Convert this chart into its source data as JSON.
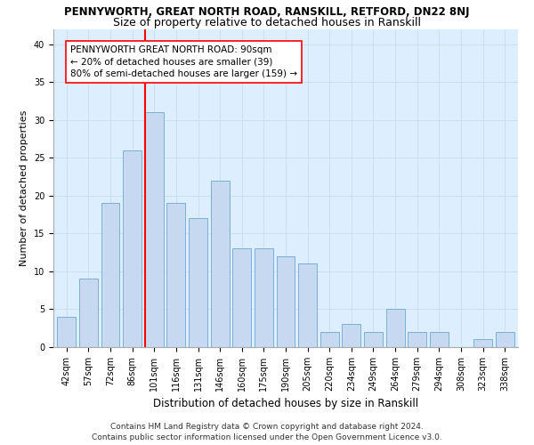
{
  "title1": "PENNYWORTH, GREAT NORTH ROAD, RANSKILL, RETFORD, DN22 8NJ",
  "title2": "Size of property relative to detached houses in Ranskill",
  "xlabel": "Distribution of detached houses by size in Ranskill",
  "ylabel": "Number of detached properties",
  "categories": [
    "42sqm",
    "57sqm",
    "72sqm",
    "86sqm",
    "101sqm",
    "116sqm",
    "131sqm",
    "146sqm",
    "160sqm",
    "175sqm",
    "190sqm",
    "205sqm",
    "220sqm",
    "234sqm",
    "249sqm",
    "264sqm",
    "279sqm",
    "294sqm",
    "308sqm",
    "323sqm",
    "338sqm"
  ],
  "values": [
    4,
    9,
    19,
    26,
    31,
    19,
    17,
    22,
    13,
    13,
    12,
    11,
    2,
    3,
    2,
    5,
    2,
    2,
    0,
    1,
    2
  ],
  "bar_color": "#c6d9f0",
  "bar_edge_color": "#7bafd4",
  "grid_color": "#c8ddf0",
  "bg_color": "#ddeeff",
  "annotation_line1": "PENNYWORTH GREAT NORTH ROAD: 90sqm",
  "annotation_line2": "← 20% of detached houses are smaller (39)",
  "annotation_line3": "80% of semi-detached houses are larger (159) →",
  "ylim": [
    0,
    42
  ],
  "yticks": [
    0,
    5,
    10,
    15,
    20,
    25,
    30,
    35,
    40
  ],
  "footer1": "Contains HM Land Registry data © Crown copyright and database right 2024.",
  "footer2": "Contains public sector information licensed under the Open Government Licence v3.0.",
  "title1_fontsize": 8.5,
  "title2_fontsize": 9,
  "xlabel_fontsize": 8.5,
  "ylabel_fontsize": 8,
  "tick_fontsize": 7,
  "annotation_fontsize": 7.5,
  "footer_fontsize": 6.5,
  "vline_index": 3.57
}
